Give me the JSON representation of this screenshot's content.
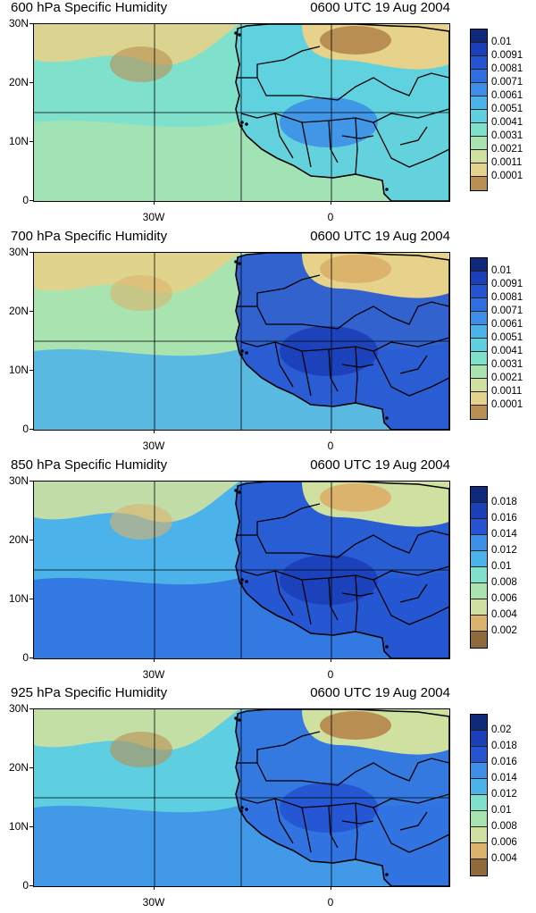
{
  "panels": [
    {
      "title": "600 hPa Specific Humidity",
      "time": "0600 UTC 19 Aug 2004",
      "levels": [
        "0.01",
        "0.0091",
        "0.0081",
        "0.0071",
        "0.0061",
        "0.0051",
        "0.0041",
        "0.0031",
        "0.0021",
        "0.0011",
        "0.0001"
      ],
      "regime": "dry"
    },
    {
      "title": "700 hPa Specific Humidity",
      "time": "0600 UTC 19 Aug 2004",
      "levels": [
        "0.01",
        "0.0091",
        "0.0081",
        "0.0071",
        "0.0061",
        "0.0051",
        "0.0041",
        "0.0031",
        "0.0021",
        "0.0011",
        "0.0001"
      ],
      "regime": "mid"
    },
    {
      "title": "850 hPa Specific Humidity",
      "time": "0600 UTC 19 Aug 2004",
      "levels": [
        "0.018",
        "0.016",
        "0.014",
        "0.012",
        "0.01",
        "0.008",
        "0.006",
        "0.004",
        "0.002"
      ],
      "regime": "wet"
    },
    {
      "title": "925 hPa Specific Humidity",
      "time": "0600 UTC 19 Aug 2004",
      "levels": [
        "0.02",
        "0.018",
        "0.016",
        "0.014",
        "0.012",
        "0.01",
        "0.008",
        "0.006",
        "0.004"
      ],
      "regime": "wettest"
    }
  ],
  "axes": {
    "y_labels": [
      "30N",
      "20N",
      "10N",
      "0"
    ],
    "x_labels": [
      "30W",
      "0"
    ]
  },
  "colors": {
    "palette_wet_to_dry": [
      "#0f2a7a",
      "#1b3fb8",
      "#2553d1",
      "#2f6fe0",
      "#3d8fe8",
      "#4cb2ea",
      "#5dcfe0",
      "#7fe0cc",
      "#a8e3b0",
      "#cfe0a0",
      "#e6d28a",
      "#dbb36d",
      "#b98e52",
      "#8f6a3a"
    ]
  }
}
